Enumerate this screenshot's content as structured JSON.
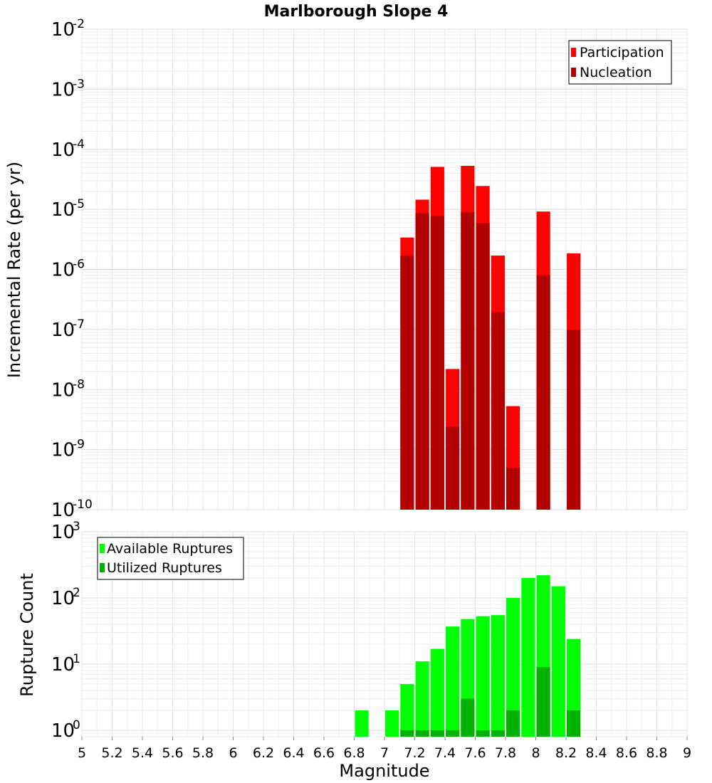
{
  "chart_data": [
    {
      "type": "bar",
      "title": "Marlborough Slope 4",
      "ylabel": "Incremental Rate (per yr)",
      "xlabel": "",
      "yscale": "log",
      "ylim": [
        1e-10,
        0.01
      ],
      "xlim": [
        5,
        9
      ],
      "grid": true,
      "legend_position": "top-right",
      "yticks": [
        {
          "base": "10",
          "exp": "-10",
          "value": 1e-10
        },
        {
          "base": "10",
          "exp": "-9",
          "value": 1e-09
        },
        {
          "base": "10",
          "exp": "-8",
          "value": 1e-08
        },
        {
          "base": "10",
          "exp": "-7",
          "value": 1e-07
        },
        {
          "base": "10",
          "exp": "-6",
          "value": 1e-06
        },
        {
          "base": "10",
          "exp": "-5",
          "value": 1e-05
        },
        {
          "base": "10",
          "exp": "-4",
          "value": 0.0001
        },
        {
          "base": "10",
          "exp": "-3",
          "value": 0.001
        },
        {
          "base": "10",
          "exp": "-2",
          "value": 0.01
        }
      ],
      "series": [
        {
          "name": "Participation",
          "color": "#ff0000",
          "points": [
            {
              "x": 7.15,
              "y": 3.4e-06
            },
            {
              "x": 7.25,
              "y": 1.45e-05
            },
            {
              "x": 7.35,
              "y": 5.1e-05
            },
            {
              "x": 7.45,
              "y": 2.2e-08
            },
            {
              "x": 7.55,
              "y": 5.3e-05
            },
            {
              "x": 7.65,
              "y": 2.45e-05
            },
            {
              "x": 7.75,
              "y": 1.7e-06
            },
            {
              "x": 7.85,
              "y": 5.3e-09
            },
            {
              "x": 8.05,
              "y": 9.2e-06
            },
            {
              "x": 8.25,
              "y": 1.85e-06
            }
          ]
        },
        {
          "name": "Nucleation",
          "color": "#b20000",
          "points": [
            {
              "x": 7.15,
              "y": 1.7e-06
            },
            {
              "x": 7.25,
              "y": 8.6e-06
            },
            {
              "x": 7.35,
              "y": 7.7e-06
            },
            {
              "x": 7.45,
              "y": 2.4e-09
            },
            {
              "x": 7.55,
              "y": 9e-06
            },
            {
              "x": 7.65,
              "y": 5.9e-06
            },
            {
              "x": 7.75,
              "y": 1.95e-07
            },
            {
              "x": 7.85,
              "y": 5e-10
            },
            {
              "x": 8.05,
              "y": 8e-07
            },
            {
              "x": 8.25,
              "y": 9.8e-08
            }
          ]
        }
      ]
    },
    {
      "type": "bar",
      "title": "",
      "ylabel": "Rupture Count",
      "xlabel": "Magnitude",
      "yscale": "log",
      "ylim": [
        0.8,
        1000
      ],
      "xlim": [
        5,
        9
      ],
      "grid": true,
      "legend_position": "top-left",
      "yticks": [
        {
          "base": "10",
          "exp": "0",
          "value": 1
        },
        {
          "base": "10",
          "exp": "1",
          "value": 10
        },
        {
          "base": "10",
          "exp": "2",
          "value": 100
        },
        {
          "base": "10",
          "exp": "3",
          "value": 1000
        }
      ],
      "xticks": [
        "5",
        "5.2",
        "5.4",
        "5.6",
        "5.8",
        "6",
        "6.2",
        "6.4",
        "6.6",
        "6.8",
        "7",
        "7.2",
        "7.4",
        "7.6",
        "7.8",
        "8",
        "8.2",
        "8.4",
        "8.6",
        "8.8",
        "9"
      ],
      "series": [
        {
          "name": "Available Ruptures",
          "color": "#00ff00",
          "points": [
            {
              "x": 6.85,
              "y": 2
            },
            {
              "x": 7.05,
              "y": 2
            },
            {
              "x": 7.15,
              "y": 5
            },
            {
              "x": 7.25,
              "y": 11
            },
            {
              "x": 7.35,
              "y": 17
            },
            {
              "x": 7.45,
              "y": 37
            },
            {
              "x": 7.55,
              "y": 48
            },
            {
              "x": 7.65,
              "y": 53
            },
            {
              "x": 7.75,
              "y": 55
            },
            {
              "x": 7.85,
              "y": 100
            },
            {
              "x": 7.95,
              "y": 200
            },
            {
              "x": 8.05,
              "y": 220
            },
            {
              "x": 8.15,
              "y": 150
            },
            {
              "x": 8.25,
              "y": 24
            }
          ]
        },
        {
          "name": "Utilized Ruptures",
          "color": "#00b200",
          "points": [
            {
              "x": 7.15,
              "y": 1
            },
            {
              "x": 7.25,
              "y": 1
            },
            {
              "x": 7.35,
              "y": 1
            },
            {
              "x": 7.45,
              "y": 1
            },
            {
              "x": 7.55,
              "y": 3
            },
            {
              "x": 7.65,
              "y": 1
            },
            {
              "x": 7.75,
              "y": 1
            },
            {
              "x": 7.85,
              "y": 2
            },
            {
              "x": 8.05,
              "y": 9
            },
            {
              "x": 8.25,
              "y": 2
            }
          ]
        }
      ]
    }
  ]
}
